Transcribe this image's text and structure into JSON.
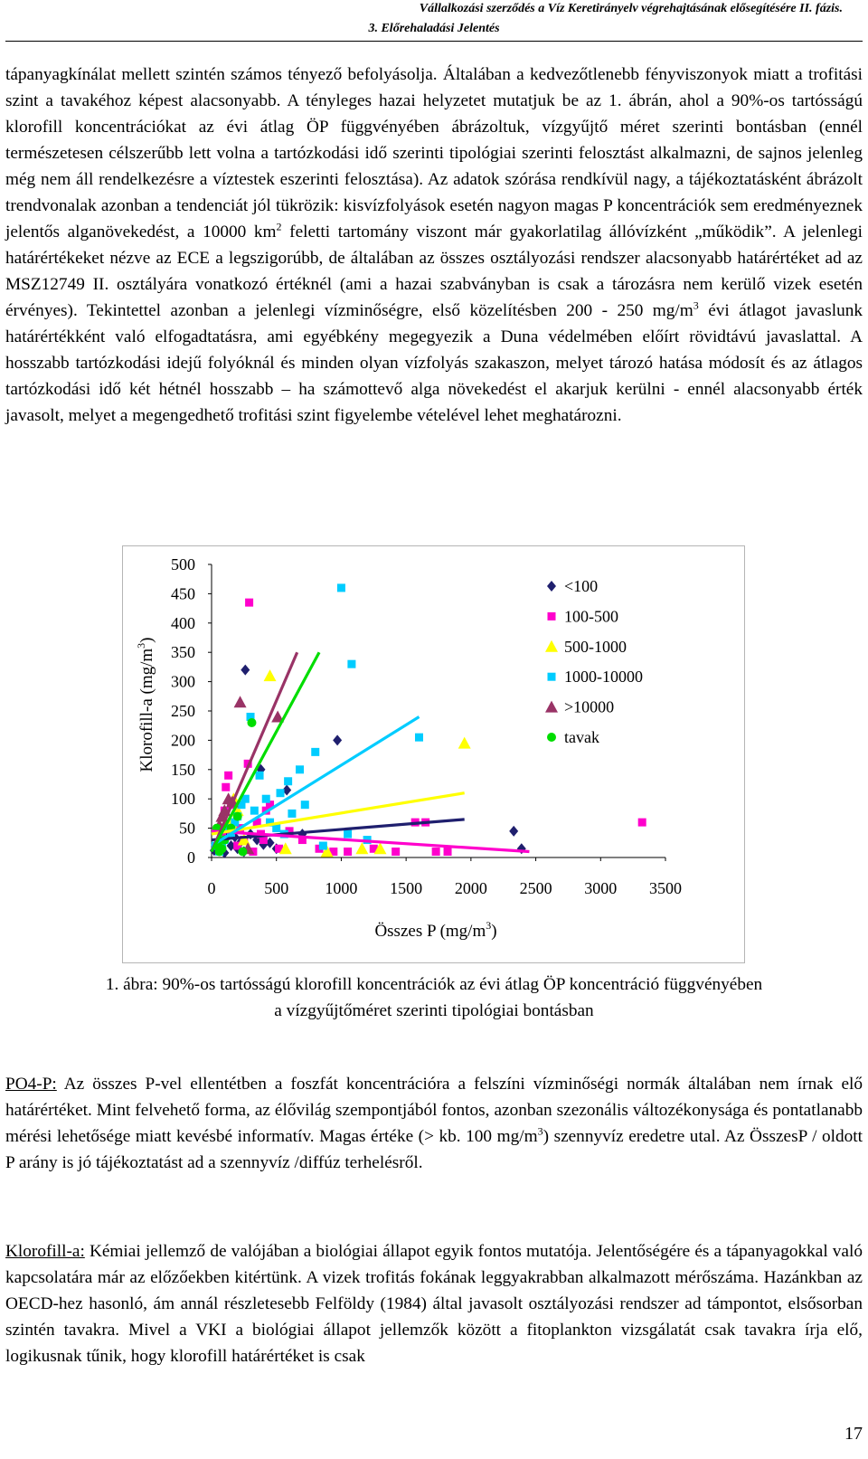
{
  "header": {
    "line1": "Vállalkozási szerződés a Víz Keretirányelv végrehajtásának elősegítésére II. fázis.",
    "line2": "3. Előrehaladási Jelentés"
  },
  "paragraph1": {
    "a": "tápanyagkínálat mellett szintén számos tényező befolyásolja. Általában a kedvezőtlenebb fényviszonyok miatt a trofitási szint a tavakéhoz képest alacsonyabb. A tényleges hazai helyzetet mutatjuk be az 1. ábrán, ahol a 90%-os tartósságú klorofill koncentrációkat az évi átlag ÖP függvényében ábrázoltuk, vízgyűjtő méret szerinti bontásban (ennél természetesen célszerűbb lett volna a tartózkodási idő szerinti tipológiai szerinti felosztást alkalmazni, de sajnos jelenleg még nem áll rendelkezésre a víztestek eszerinti felosztása). Az adatok szórása rendkívül nagy, a tájékoztatásként ábrázolt trendvonalak azonban a tendenciát jól tükrözik: kisvízfolyások esetén nagyon magas P koncentrációk sem eredményeznek jelentős alganövekedést, a 10000 km",
    "sup1": "2",
    "b": " feletti tartomány viszont már gyakorlatilag állóvízként „működik”. A jelenlegi határértékeket nézve az ECE a legszigorúbb, de általában az összes osztályozási rendszer alacsonyabb határértéket ad az MSZ12749 II. osztályára vonatkozó értéknél (ami a hazai szabványban is csak a tározásra nem kerülő vizek esetén érvényes). Tekintettel azonban a jelenlegi vízminőségre, első közelítésben 200 - 250 mg/m",
    "sup2": "3",
    "c": " évi átlagot javaslunk határértékként való elfogadtatásra, ami egyébkény megegyezik a Duna védelmében előírt rövidtávú javaslattal. A hosszabb tartózkodási idejű folyóknál és minden olyan vízfolyás szakaszon, melyet tározó hatása módosít és az átlagos tartózkodási idő két hétnél hosszabb – ha számottevő alga növekedést el akarjuk kerülni - ennél alacsonyabb érték javasolt, melyet a megengedhető trofitási szint figyelembe vételével lehet meghatározni."
  },
  "caption": {
    "line1": "1. ábra: 90%-os tartósságú klorofill koncentrációk az évi átlag ÖP koncentráció függvényében",
    "line2": "a vízgyűjtőméret szerinti tipológiai bontásban"
  },
  "paragraph2": {
    "term": "PO4-P:",
    "a": " Az összes P-vel ellentétben a foszfát koncentrációra a felszíni vízminőségi normák általában nem írnak elő határértéket. Mint felvehető forma, az élővilág szempontjából fontos, azonban szezonális változékonysága és pontatlanabb mérési lehetősége miatt kevésbé informatív. Magas értéke (> kb. 100 mg/m",
    "sup": "3",
    "b": ") szennyvíz eredetre utal. Az ÖsszesP / oldott P arány is jó tájékoztatást ad a szennyvíz /diffúz terhelésről."
  },
  "paragraph3": {
    "term": "Klorofill-a:",
    "a": " Kémiai jellemző de valójában a biológiai állapot egyik fontos mutatója. Jelentőségére és a tápanyagokkal való kapcsolatára már az előzőekben kitértünk. A vizek trofitás fokának leggyakrabban alkalmazott mérőszáma. Hazánkban az OECD-hez hasonló, ám annál részletesebb Felföldy (1984) által javasolt osztályozási rendszer ad támpontot, elsősorban szintén tavakra. Mivel a VKI a biológiai állapot jellemzők között a fitoplankton vizsgálatát csak tavakra írja elő, logikusnak tűnik, hogy klorofill határértéket is csak"
  },
  "page_number": "17",
  "chart_data": {
    "type": "scatter",
    "title": "",
    "xlabel_pre": "Összes P (mg/m",
    "xlabel_sup": "3",
    "xlabel_post": ")",
    "ylabel_pre": "Klorofill-a (mg/m",
    "ylabel_sup": "3",
    "ylabel_post": ")",
    "xlim": [
      0,
      3500
    ],
    "ylim": [
      0,
      500
    ],
    "xticks": [
      "0",
      "500",
      "1000",
      "1500",
      "2000",
      "2500",
      "3000",
      "3500"
    ],
    "yticks": [
      "0",
      "50",
      "100",
      "150",
      "200",
      "250",
      "300",
      "350",
      "400",
      "450",
      "500"
    ],
    "grid": false,
    "legend_position": "top-right",
    "series": [
      {
        "name": "<100",
        "marker": "diamond",
        "color": "#1f1f6e",
        "points": [
          [
            20,
            12
          ],
          [
            60,
            18
          ],
          [
            80,
            30
          ],
          [
            100,
            8
          ],
          [
            120,
            40
          ],
          [
            150,
            20
          ],
          [
            180,
            35
          ],
          [
            200,
            15
          ],
          [
            220,
            25
          ],
          [
            250,
            10
          ],
          [
            260,
            320
          ],
          [
            300,
            40
          ],
          [
            350,
            30
          ],
          [
            380,
            150
          ],
          [
            400,
            22
          ],
          [
            450,
            25
          ],
          [
            500,
            15
          ],
          [
            580,
            115
          ],
          [
            700,
            40
          ],
          [
            970,
            200
          ],
          [
            2330,
            45
          ],
          [
            2390,
            15
          ]
        ],
        "trend": [
          [
            0,
            30
          ],
          [
            1950,
            65
          ]
        ]
      },
      {
        "name": "100-500",
        "marker": "square",
        "color": "#ff00cc",
        "points": [
          [
            80,
            40
          ],
          [
            100,
            80
          ],
          [
            110,
            120
          ],
          [
            130,
            140
          ],
          [
            150,
            90
          ],
          [
            170,
            60
          ],
          [
            200,
            20
          ],
          [
            220,
            50
          ],
          [
            250,
            30
          ],
          [
            280,
            160
          ],
          [
            290,
            435
          ],
          [
            320,
            10
          ],
          [
            350,
            60
          ],
          [
            380,
            40
          ],
          [
            400,
            30
          ],
          [
            420,
            80
          ],
          [
            450,
            90
          ],
          [
            520,
            15
          ],
          [
            600,
            45
          ],
          [
            700,
            30
          ],
          [
            830,
            15
          ],
          [
            940,
            10
          ],
          [
            1050,
            10
          ],
          [
            1250,
            15
          ],
          [
            1420,
            10
          ],
          [
            1570,
            60
          ],
          [
            1650,
            60
          ],
          [
            1730,
            10
          ],
          [
            1820,
            10
          ],
          [
            3320,
            60
          ]
        ],
        "trend": [
          [
            0,
            45
          ],
          [
            2450,
            10
          ]
        ]
      },
      {
        "name": "500-1000",
        "marker": "triangle",
        "color": "#ffff00",
        "points": [
          [
            150,
            60
          ],
          [
            170,
            100
          ],
          [
            200,
            80
          ],
          [
            250,
            30
          ],
          [
            450,
            310
          ],
          [
            570,
            15
          ],
          [
            890,
            10
          ],
          [
            1160,
            15
          ],
          [
            1300,
            15
          ],
          [
            1950,
            195
          ]
        ],
        "trend": [
          [
            0,
            40
          ],
          [
            1950,
            110
          ]
        ]
      },
      {
        "name": "1000-10000",
        "marker": "square",
        "color": "#00ccff",
        "points": [
          [
            30,
            20
          ],
          [
            60,
            10
          ],
          [
            80,
            25
          ],
          [
            100,
            30
          ],
          [
            120,
            50
          ],
          [
            150,
            40
          ],
          [
            180,
            60
          ],
          [
            200,
            70
          ],
          [
            230,
            90
          ],
          [
            260,
            100
          ],
          [
            300,
            240
          ],
          [
            330,
            80
          ],
          [
            370,
            140
          ],
          [
            420,
            100
          ],
          [
            450,
            60
          ],
          [
            500,
            50
          ],
          [
            530,
            110
          ],
          [
            560,
            40
          ],
          [
            590,
            130
          ],
          [
            620,
            75
          ],
          [
            680,
            150
          ],
          [
            720,
            90
          ],
          [
            800,
            180
          ],
          [
            860,
            20
          ],
          [
            1000,
            460
          ],
          [
            1050,
            40
          ],
          [
            1080,
            330
          ],
          [
            1200,
            30
          ],
          [
            1600,
            205
          ]
        ],
        "trend": [
          [
            0,
            20
          ],
          [
            1600,
            240
          ]
        ]
      },
      {
        "name": ">10000",
        "marker": "triangle",
        "color": "#993366",
        "points": [
          [
            60,
            55
          ],
          [
            80,
            70
          ],
          [
            100,
            80
          ],
          [
            130,
            100
          ],
          [
            160,
            95
          ],
          [
            220,
            265
          ],
          [
            280,
            15
          ],
          [
            510,
            240
          ]
        ],
        "trend": [
          [
            0,
            10
          ],
          [
            660,
            350
          ]
        ]
      },
      {
        "name": "tavak",
        "marker": "circle",
        "color": "#00dd00",
        "points": [
          [
            40,
            50
          ],
          [
            50,
            20
          ],
          [
            60,
            10
          ],
          [
            80,
            15
          ],
          [
            100,
            30
          ],
          [
            150,
            50
          ],
          [
            200,
            70
          ],
          [
            240,
            10
          ],
          [
            310,
            230
          ]
        ],
        "trend": [
          [
            0,
            10
          ],
          [
            830,
            350
          ]
        ]
      }
    ]
  }
}
